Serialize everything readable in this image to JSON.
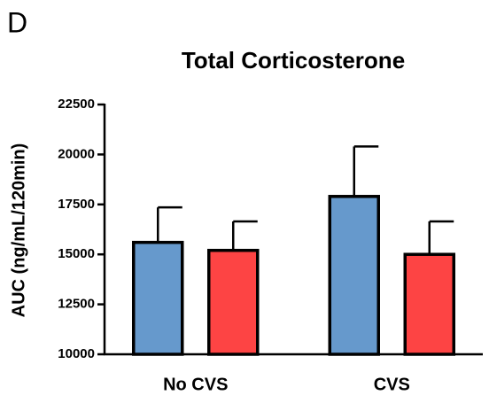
{
  "chart_data": {
    "type": "bar",
    "panel_label": "D",
    "title": "Total Corticosterone",
    "y_label": "AUC (ng/mL/120min)",
    "categories": [
      "No CVS",
      "CVS"
    ],
    "series": [
      {
        "color": "#6699cc",
        "values": [
          15600,
          17900
        ],
        "errors": [
          1750,
          2500
        ]
      },
      {
        "color": "#fd4444",
        "values": [
          15200,
          15000
        ],
        "errors": [
          1450,
          1650
        ]
      }
    ],
    "ylim": [
      10000,
      22500
    ],
    "yticks": [
      10000,
      12500,
      15000,
      17500,
      20000,
      22500
    ],
    "grid": false
  }
}
